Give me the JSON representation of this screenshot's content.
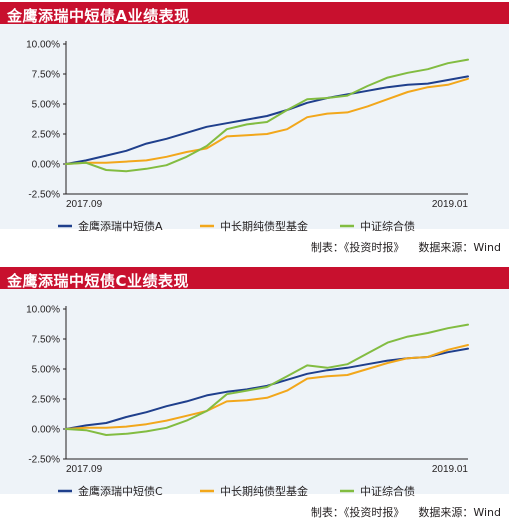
{
  "colors": {
    "series_a": "#1f3f8c",
    "series_b": "#f2a71b",
    "series_c": "#82bc41",
    "title_bar": "#c8102e",
    "chart_bg": "#eef3f8"
  },
  "source_label": "制表：《投资时报》",
  "data_source": "数据来源：Wind",
  "chart_data": [
    {
      "type": "line",
      "title": "金鹰添瑞中短债A业绩表现",
      "x_start_label": "2017.09",
      "x_end_label": "2019.01",
      "ylim": [
        -2.5,
        10
      ],
      "yticks": [
        "10.00%",
        "7.50%",
        "5.00%",
        "2.50%",
        "0.00%",
        "-2.50%"
      ],
      "ytick_values": [
        10,
        7.5,
        5,
        2.5,
        0,
        -2.5
      ],
      "legend_position": "bottom",
      "grid": false,
      "x": [
        0,
        5,
        10,
        15,
        20,
        25,
        30,
        35,
        40,
        45,
        50,
        55,
        60,
        65,
        70,
        75,
        80,
        85,
        90,
        95,
        100
      ],
      "series": [
        {
          "name": "金鹰添瑞中短债A",
          "values": [
            0,
            0.3,
            0.7,
            1.1,
            1.7,
            2.1,
            2.6,
            3.1,
            3.4,
            3.7,
            4.0,
            4.5,
            5.1,
            5.5,
            5.8,
            6.1,
            6.4,
            6.6,
            6.7,
            7.0,
            7.3
          ]
        },
        {
          "name": "中长期纯债型基金",
          "values": [
            0,
            0.1,
            0.1,
            0.2,
            0.3,
            0.6,
            1.0,
            1.3,
            2.3,
            2.4,
            2.5,
            2.9,
            3.9,
            4.2,
            4.3,
            4.8,
            5.4,
            6.0,
            6.4,
            6.6,
            7.1
          ]
        },
        {
          "name": "中证综合债",
          "values": [
            0,
            0.1,
            -0.5,
            -0.6,
            -0.4,
            -0.1,
            0.6,
            1.5,
            2.9,
            3.3,
            3.5,
            4.5,
            5.4,
            5.5,
            5.7,
            6.5,
            7.2,
            7.6,
            7.9,
            8.4,
            8.7
          ]
        }
      ]
    },
    {
      "type": "line",
      "title": "金鹰添瑞中短债C业绩表现",
      "x_start_label": "2017.09",
      "x_end_label": "2019.01",
      "ylim": [
        -2.5,
        10
      ],
      "yticks": [
        "10.00%",
        "7.50%",
        "5.00%",
        "2.50%",
        "0.00%",
        "-2.50%"
      ],
      "ytick_values": [
        10,
        7.5,
        5,
        2.5,
        0,
        -2.5
      ],
      "legend_position": "bottom",
      "grid": false,
      "x": [
        0,
        5,
        10,
        15,
        20,
        25,
        30,
        35,
        40,
        45,
        50,
        55,
        60,
        65,
        70,
        75,
        80,
        85,
        90,
        95,
        100
      ],
      "series": [
        {
          "name": "金鹰添瑞中短债C",
          "values": [
            0,
            0.3,
            0.5,
            1.0,
            1.4,
            1.9,
            2.3,
            2.8,
            3.1,
            3.3,
            3.6,
            4.1,
            4.6,
            4.9,
            5.1,
            5.4,
            5.7,
            5.9,
            6.0,
            6.4,
            6.7
          ]
        },
        {
          "name": "中长期纯债型基金",
          "values": [
            0,
            0.1,
            0.1,
            0.2,
            0.4,
            0.7,
            1.1,
            1.5,
            2.3,
            2.4,
            2.6,
            3.2,
            4.2,
            4.4,
            4.5,
            5.0,
            5.5,
            5.9,
            6.0,
            6.6,
            7.0
          ]
        },
        {
          "name": "中证综合债",
          "values": [
            0,
            -0.1,
            -0.5,
            -0.4,
            -0.2,
            0.1,
            0.7,
            1.5,
            2.9,
            3.2,
            3.5,
            4.4,
            5.3,
            5.1,
            5.4,
            6.3,
            7.2,
            7.7,
            8.0,
            8.4,
            8.7
          ]
        }
      ]
    }
  ]
}
